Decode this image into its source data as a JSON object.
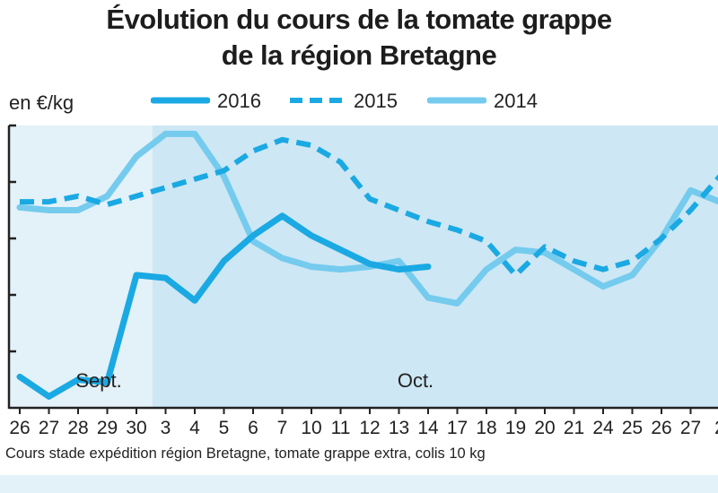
{
  "chart_data": {
    "type": "line",
    "title": [
      "Évolution du cours de la tomate grappe",
      "de la région Bretagne"
    ],
    "ylabel": "en €/kg",
    "xlabel": "",
    "categories": [
      "26",
      "27",
      "28",
      "29",
      "30",
      "3",
      "4",
      "5",
      "6",
      "7",
      "10",
      "11",
      "12",
      "13",
      "14",
      "17",
      "18",
      "19",
      "20",
      "21",
      "24",
      "25",
      "26",
      "27",
      "2"
    ],
    "month_labels": [
      "Sept.",
      "Oct."
    ],
    "ylim": [
      0,
      5
    ],
    "grid": false,
    "legend": "top",
    "series": [
      {
        "name": "2016",
        "style": "solid-thick",
        "color": "#1aa9e3",
        "values": [
          0.55,
          0.2,
          0.5,
          0.45,
          2.35,
          2.3,
          1.9,
          2.6,
          3.05,
          3.4,
          3.05,
          2.8,
          2.55,
          2.45,
          2.5,
          null,
          null,
          null,
          null,
          null,
          null,
          null,
          null,
          null,
          null
        ]
      },
      {
        "name": "2015",
        "style": "dashed",
        "color": "#1aa9e3",
        "values": [
          3.65,
          3.65,
          3.75,
          3.6,
          3.75,
          3.9,
          4.05,
          4.2,
          4.55,
          4.75,
          4.65,
          4.35,
          3.7,
          3.5,
          3.3,
          3.15,
          2.95,
          2.35,
          2.85,
          2.6,
          2.45,
          2.6,
          3.0,
          3.5,
          4.1
        ]
      },
      {
        "name": "2014",
        "style": "solid-light",
        "color": "#74cbee",
        "values": [
          3.55,
          3.5,
          3.5,
          3.75,
          4.45,
          4.85,
          4.85,
          4.1,
          2.95,
          2.65,
          2.5,
          2.45,
          2.5,
          2.6,
          1.95,
          1.85,
          2.45,
          2.8,
          2.75,
          2.45,
          2.15,
          2.35,
          3.0,
          3.85,
          3.65
        ]
      }
    ],
    "note": "Cours stade expédition région Bretagne, tomate grappe extra, colis 10 kg"
  },
  "colors": {
    "plot_bg_sept": "#e3f1f8",
    "plot_bg_oct": "#cde7f4",
    "axis": "#222222"
  }
}
